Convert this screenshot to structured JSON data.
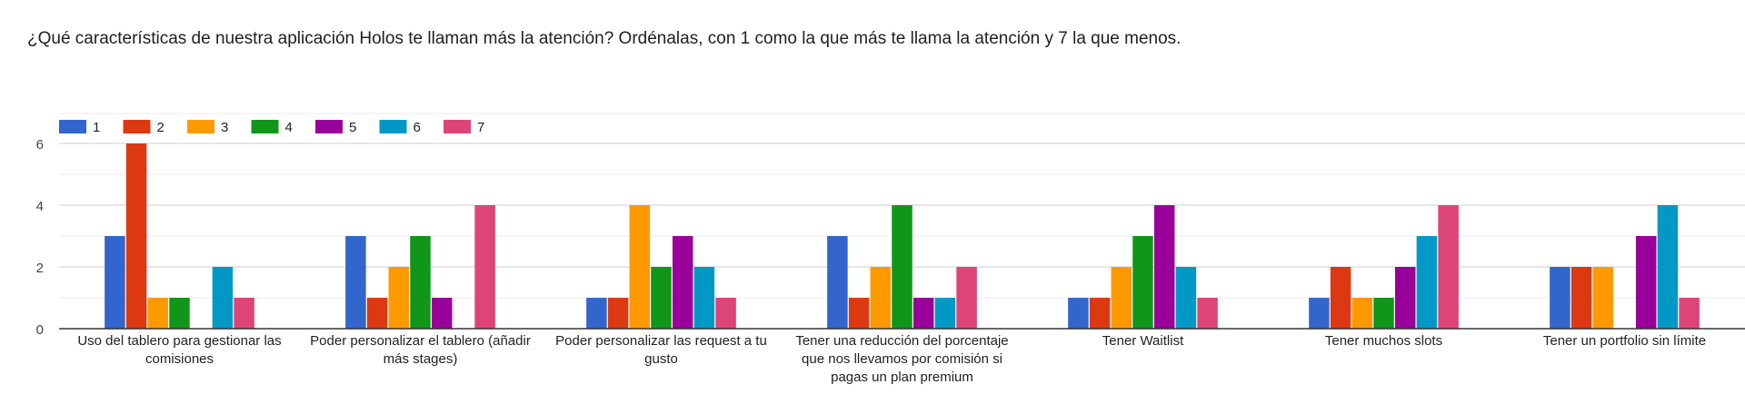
{
  "question": "¿Qué características de nuestra aplicación Holos te llaman más la atención? Ordénalas, con 1 como la que más te llama la atención y 7 la que menos.",
  "chart_data": {
    "type": "bar",
    "title": "",
    "xlabel": "",
    "ylabel": "",
    "ylim": [
      0,
      6
    ],
    "yticks": [
      0,
      2,
      4,
      6
    ],
    "grid": true,
    "legend_position": "top-left",
    "categories": [
      [
        "Uso del tablero para gestionar las",
        "comisiones"
      ],
      [
        "Poder personalizar el tablero (añadir",
        "más stages)"
      ],
      [
        "Poder personalizar las request a tu",
        "gusto"
      ],
      [
        "Tener una reducción del porcentaje",
        "que nos llevamos por comisión si",
        "pagas un plan premium"
      ],
      [
        "Tener Waitlist"
      ],
      [
        "Tener muchos slots"
      ],
      [
        "Tener un portfolio sin límite"
      ]
    ],
    "series": [
      {
        "name": "1",
        "color": "#3366cc",
        "values": [
          3,
          3,
          1,
          3,
          1,
          1,
          2
        ]
      },
      {
        "name": "2",
        "color": "#dc3912",
        "values": [
          6,
          1,
          1,
          1,
          1,
          2,
          2
        ]
      },
      {
        "name": "3",
        "color": "#ff9900",
        "values": [
          1,
          2,
          4,
          2,
          2,
          1,
          2
        ]
      },
      {
        "name": "4",
        "color": "#109618",
        "values": [
          1,
          3,
          2,
          4,
          3,
          1,
          0
        ]
      },
      {
        "name": "5",
        "color": "#990099",
        "values": [
          0,
          1,
          3,
          1,
          4,
          2,
          3
        ]
      },
      {
        "name": "6",
        "color": "#0099c6",
        "values": [
          2,
          0,
          2,
          1,
          2,
          3,
          4
        ]
      },
      {
        "name": "7",
        "color": "#dd4477",
        "values": [
          1,
          4,
          1,
          2,
          1,
          4,
          1
        ]
      }
    ]
  }
}
